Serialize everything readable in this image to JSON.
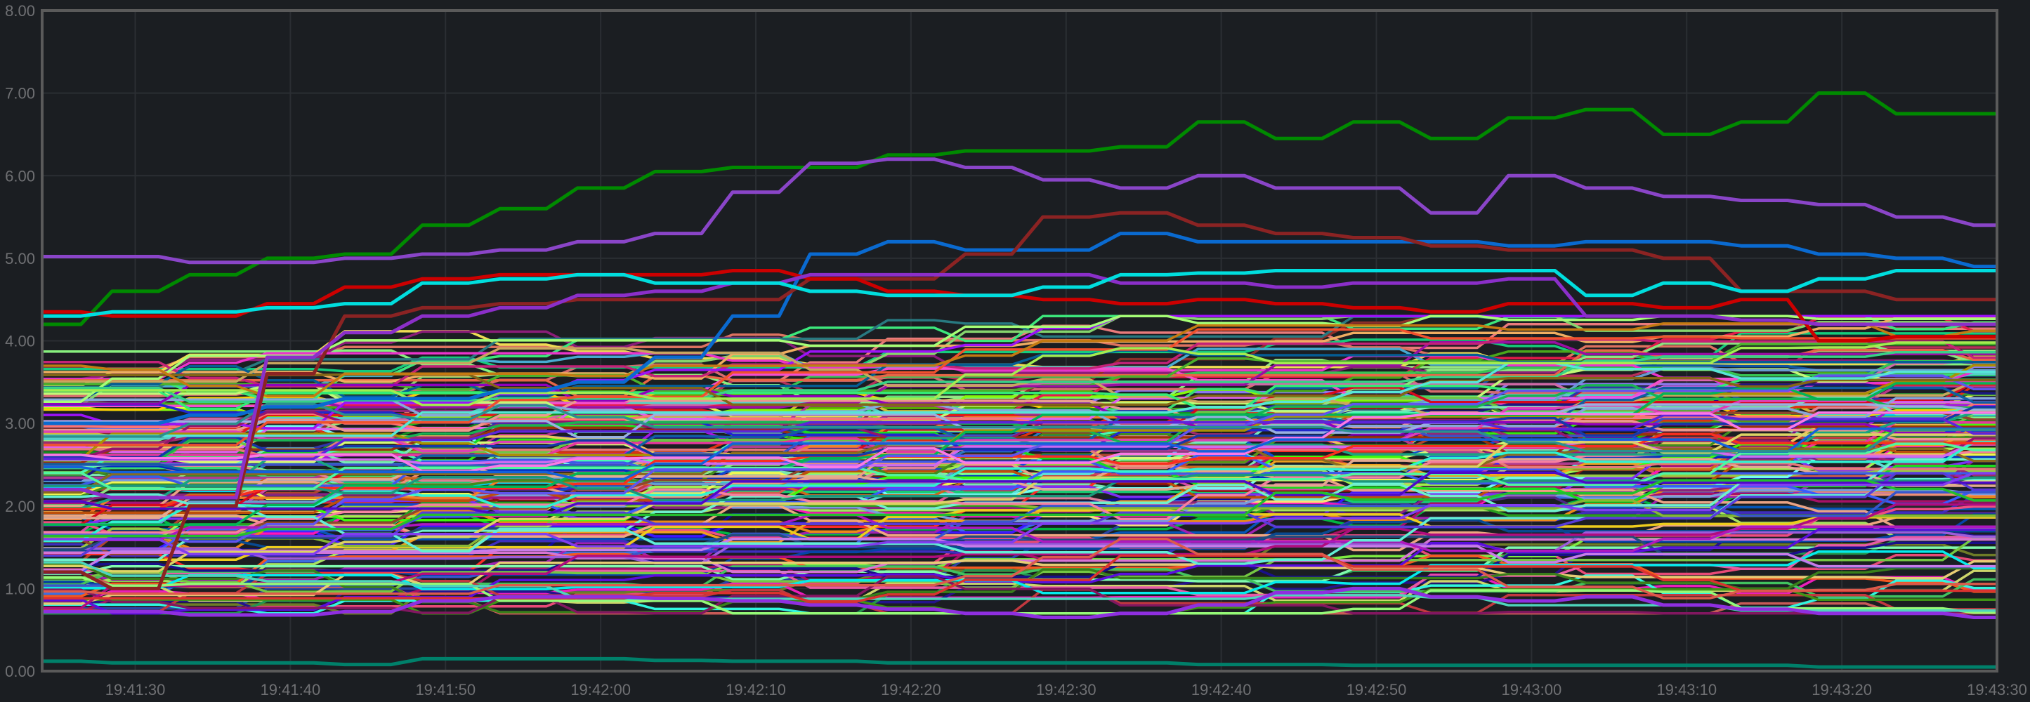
{
  "chart_data": {
    "type": "line",
    "title": "",
    "xlabel": "",
    "ylabel": "",
    "ylim": [
      0,
      8
    ],
    "y_ticks": [
      "0.00",
      "1.00",
      "2.00",
      "3.00",
      "4.00",
      "5.00",
      "6.00",
      "7.00",
      "8.00"
    ],
    "x_ticks": [
      "19:41:30",
      "19:41:40",
      "19:41:50",
      "19:42:00",
      "19:42:10",
      "19:42:20",
      "19:42:30",
      "19:42:40",
      "19:42:50",
      "19:43:00",
      "19:43:10",
      "19:43:20",
      "19:43:30"
    ],
    "x_range": [
      "19:41:24",
      "19:43:30"
    ],
    "x_start": "19:41:25",
    "step_seconds": 5,
    "grid": true,
    "legend": "none",
    "series": [
      {
        "name": "green",
        "color": "#008a00",
        "values": [
          4.2,
          4.6,
          4.8,
          5.0,
          5.05,
          5.4,
          5.6,
          5.85,
          6.05,
          6.1,
          6.1,
          6.25,
          6.3,
          6.3,
          6.35,
          6.65,
          6.45,
          6.65,
          6.45,
          6.7,
          6.8,
          6.5,
          6.65,
          7.0,
          6.75,
          6.75
        ]
      },
      {
        "name": "purple",
        "color": "#8a45c8",
        "values": [
          5.02,
          5.02,
          4.95,
          4.95,
          5.0,
          5.05,
          5.1,
          5.2,
          5.3,
          5.8,
          6.15,
          6.2,
          6.1,
          5.95,
          5.85,
          6.0,
          5.85,
          5.85,
          5.55,
          6.0,
          5.85,
          5.75,
          5.7,
          5.65,
          5.5,
          5.4
        ]
      },
      {
        "name": "blue",
        "color": "#0a6ad0",
        "values": [
          3.0,
          3.0,
          3.1,
          3.2,
          3.3,
          3.3,
          3.4,
          3.5,
          3.8,
          4.3,
          5.05,
          5.2,
          5.1,
          5.1,
          5.3,
          5.2,
          5.2,
          5.2,
          5.2,
          5.15,
          5.2,
          5.2,
          5.15,
          5.05,
          5.0,
          4.9
        ]
      },
      {
        "name": "dark-red",
        "color": "#8b2323",
        "values": [
          1.2,
          1.0,
          2.0,
          3.6,
          4.3,
          4.4,
          4.45,
          4.5,
          4.5,
          4.5,
          4.75,
          4.75,
          5.05,
          5.5,
          5.55,
          5.4,
          5.3,
          5.25,
          5.15,
          5.1,
          5.1,
          5.0,
          4.6,
          4.6,
          4.5,
          4.5
        ]
      },
      {
        "name": "red",
        "color": "#cc0000",
        "values": [
          4.35,
          4.3,
          4.3,
          4.45,
          4.65,
          4.75,
          4.8,
          4.8,
          4.8,
          4.85,
          4.75,
          4.6,
          4.55,
          4.5,
          4.45,
          4.5,
          4.45,
          4.4,
          4.35,
          4.45,
          4.45,
          4.4,
          4.5,
          4.0,
          4.05,
          4.05
        ]
      },
      {
        "name": "violet",
        "color": "#8b2fc9",
        "values": [
          2.2,
          2.1,
          2.1,
          3.8,
          4.1,
          4.3,
          4.4,
          4.55,
          4.6,
          4.7,
          4.8,
          4.8,
          4.8,
          4.8,
          4.7,
          4.7,
          4.65,
          4.7,
          4.7,
          4.75,
          4.3,
          4.3,
          4.25,
          4.2,
          4.2,
          4.2
        ]
      },
      {
        "name": "cyan",
        "color": "#00dede",
        "values": [
          4.3,
          4.35,
          4.35,
          4.4,
          4.45,
          4.7,
          4.75,
          4.8,
          4.7,
          4.7,
          4.6,
          4.55,
          4.55,
          4.65,
          4.8,
          4.82,
          4.85,
          4.85,
          4.85,
          4.85,
          4.55,
          4.7,
          4.6,
          4.75,
          4.85,
          4.85
        ]
      },
      {
        "name": "low-purple",
        "color": "#8f2fe0",
        "values": [
          0.72,
          0.72,
          0.68,
          0.68,
          0.72,
          0.85,
          0.9,
          0.9,
          0.88,
          0.85,
          0.8,
          0.75,
          0.7,
          0.65,
          0.7,
          0.8,
          0.95,
          1.0,
          0.9,
          0.85,
          0.9,
          0.8,
          0.75,
          0.7,
          0.7,
          0.65
        ]
      },
      {
        "name": "teal-bottom",
        "color": "#00806a",
        "values": [
          0.12,
          0.1,
          0.1,
          0.1,
          0.08,
          0.15,
          0.15,
          0.15,
          0.13,
          0.12,
          0.12,
          0.1,
          0.1,
          0.1,
          0.1,
          0.08,
          0.08,
          0.07,
          0.07,
          0.07,
          0.07,
          0.07,
          0.07,
          0.05,
          0.05,
          0.05
        ]
      }
    ],
    "dense_band": {
      "series_count": 200,
      "seed": 12345,
      "min": 0.7,
      "max": 4.3
    }
  },
  "colors": {
    "background": "#1b1e22",
    "grid": "#2b2e33",
    "frame": "#5a5a5a",
    "tick_text": "#6f7073"
  }
}
